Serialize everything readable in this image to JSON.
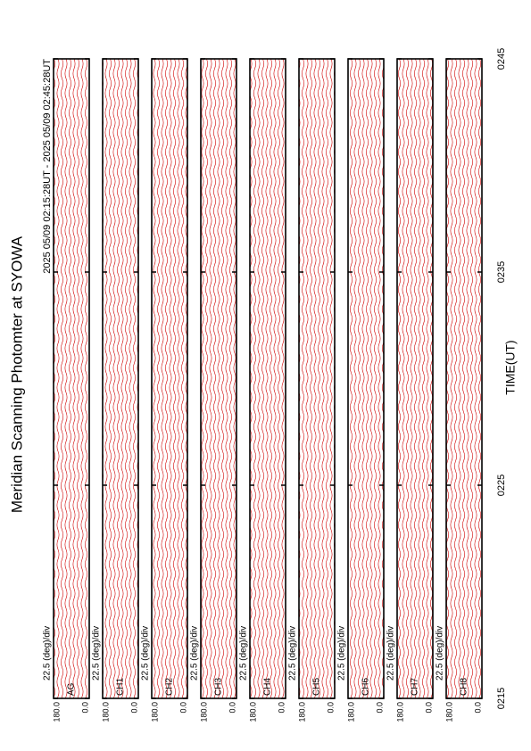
{
  "chart_data": {
    "type": "line",
    "title": "Meridian Scanning Photomter at SYOWA",
    "subtitle": "2025 05/09 02:15:28UT - 2025 05/09 02:45:28UT",
    "xlabel": "TIME(UT)",
    "xlim": [
      15,
      45
    ],
    "xticks": [
      {
        "value": 15,
        "label": "0215"
      },
      {
        "value": 25,
        "label": "0225"
      },
      {
        "value": 35,
        "label": "0235"
      },
      {
        "value": 45,
        "label": "0245"
      }
    ],
    "color": "#e00000",
    "panels": [
      {
        "label": "AG",
        "scale": "22.5 (deg)/div",
        "ylim": [
          0,
          180
        ],
        "yticks": [
          {
            "value": 180,
            "label": "180.0"
          },
          {
            "value": 0,
            "label": "0.0"
          }
        ]
      },
      {
        "label": "CH1",
        "scale": "22.5 (deg)/div",
        "ylim": [
          0,
          180
        ],
        "yticks": [
          {
            "value": 180,
            "label": "180.0"
          },
          {
            "value": 0,
            "label": "0.0"
          }
        ]
      },
      {
        "label": "CH2",
        "scale": "22.5 (deg)/div",
        "ylim": [
          0,
          180
        ],
        "yticks": [
          {
            "value": 180,
            "label": "180.0"
          },
          {
            "value": 0,
            "label": "0.0"
          }
        ]
      },
      {
        "label": "CH3",
        "scale": "22.5 (deg)/div",
        "ylim": [
          0,
          180
        ],
        "yticks": [
          {
            "value": 180,
            "label": "180.0"
          },
          {
            "value": 0,
            "label": "0.0"
          }
        ]
      },
      {
        "label": "CH4",
        "scale": "22.5 (deg)/div",
        "ylim": [
          0,
          180
        ],
        "yticks": [
          {
            "value": 180,
            "label": "180.0"
          },
          {
            "value": 0,
            "label": "0.0"
          }
        ]
      },
      {
        "label": "CH5",
        "scale": "22.5 (deg)/div",
        "ylim": [
          0,
          180
        ],
        "yticks": [
          {
            "value": 180,
            "label": "180.0"
          },
          {
            "value": 0,
            "label": "0.0"
          }
        ]
      },
      {
        "label": "CH6",
        "scale": "22.5 (deg)/div",
        "ylim": [
          0,
          180
        ],
        "yticks": [
          {
            "value": 180,
            "label": "180.0"
          },
          {
            "value": 0,
            "label": "0.0"
          }
        ]
      },
      {
        "label": "CH7",
        "scale": "22.5 (deg)/div",
        "ylim": [
          0,
          180
        ],
        "yticks": [
          {
            "value": 180,
            "label": "180.0"
          },
          {
            "value": 0,
            "label": "0.0"
          }
        ]
      },
      {
        "label": "CH8",
        "scale": "22.5 (deg)/div",
        "ylim": [
          0,
          180
        ],
        "yticks": [
          {
            "value": 180,
            "label": "180.0"
          },
          {
            "value": 0,
            "label": "0.0"
          }
        ]
      }
    ]
  }
}
